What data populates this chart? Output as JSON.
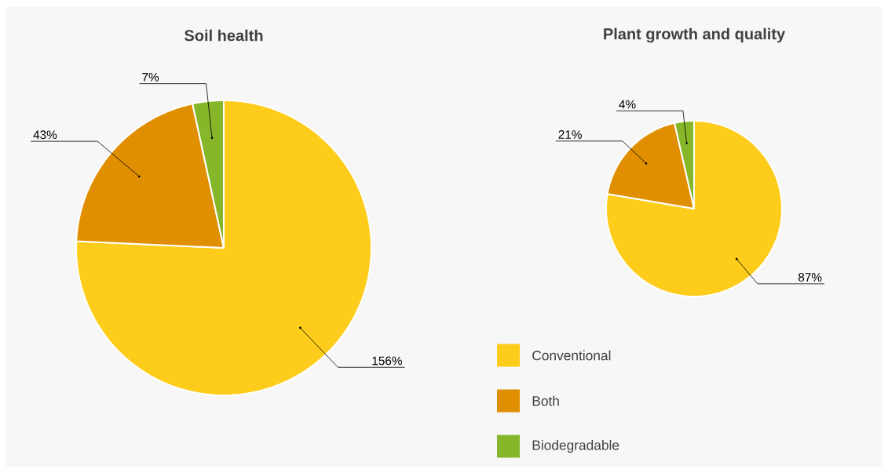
{
  "chart_data": [
    {
      "type": "pie",
      "title": "Soil health",
      "categories": [
        null,
        null,
        null
      ],
      "values": [
        156,
        43,
        7
      ],
      "colors": [
        "#fecc1b",
        "#e08f00",
        "#86b62a"
      ],
      "value_labels": [
        "156%",
        "43%",
        "7%"
      ]
    },
    {
      "type": "pie",
      "title": "Plant growth and quality",
      "categories": [
        "Conventional",
        "Both",
        "Biodegradable"
      ],
      "values": [
        87,
        21,
        4
      ],
      "colors": [
        "#fecc1b",
        "#e08f00",
        "#86b62a"
      ],
      "value_labels": [
        "87%",
        "21%",
        "4%"
      ],
      "legend": "bottom"
    }
  ]
}
